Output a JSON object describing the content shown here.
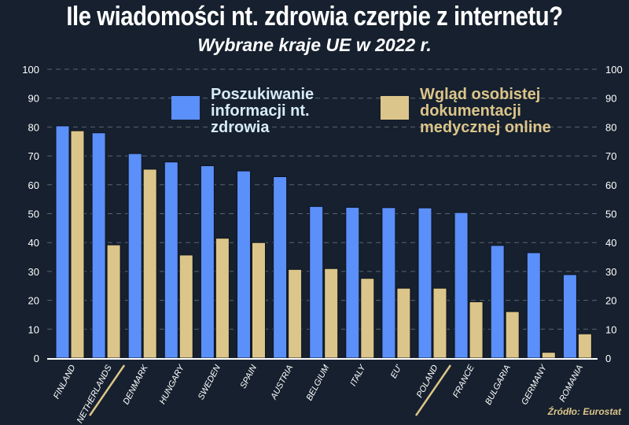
{
  "header": {
    "title": "Ile wiadomości nt. zdrowia czerpie z internetu?",
    "subtitle": "Wybrane kraje UE w 2022 r."
  },
  "source": "Źródło: Eurostat",
  "chart_data": {
    "type": "bar",
    "title": "Ile wiadomości nt. zdrowia czerpie z internetu?",
    "subtitle": "Wybrane kraje UE w 2022 r.",
    "categories": [
      "FINLAND",
      "NETHERLANDS",
      "DENMARK",
      "HUNGARY",
      "SWEDEN",
      "SPAIN",
      "AUSTRIA",
      "BELGIUM",
      "ITALY",
      "EU'",
      "POLAND",
      "FRANCE",
      "BULGARIA",
      "GERMANY",
      "ROMANIA"
    ],
    "highlighted_categories": [
      "NETHERLANDS",
      "POLAND"
    ],
    "series": [
      {
        "name": "Poszukiwanie informacji nt. zdrowia",
        "color": "#5b8ff9",
        "values": [
          80.4,
          78.0,
          70.8,
          67.9,
          66.6,
          64.8,
          62.8,
          52.5,
          52.2,
          52.1,
          52.0,
          50.4,
          39.0,
          36.5,
          28.9
        ]
      },
      {
        "name": "Wgląd osobistej dokumentacji medycznej online",
        "color": "#dcc58a",
        "values": [
          78.7,
          39.2,
          65.4,
          35.7,
          41.5,
          40.0,
          30.7,
          31.0,
          27.6,
          24.2,
          24.2,
          19.5,
          16.1,
          2.0,
          8.4
        ]
      }
    ],
    "ylim": [
      0,
      100
    ],
    "yticks": [
      0,
      10,
      20,
      30,
      40,
      50,
      60,
      70,
      80,
      90,
      100
    ],
    "y_axis_both_sides": true,
    "grid": true,
    "legend": "top"
  }
}
